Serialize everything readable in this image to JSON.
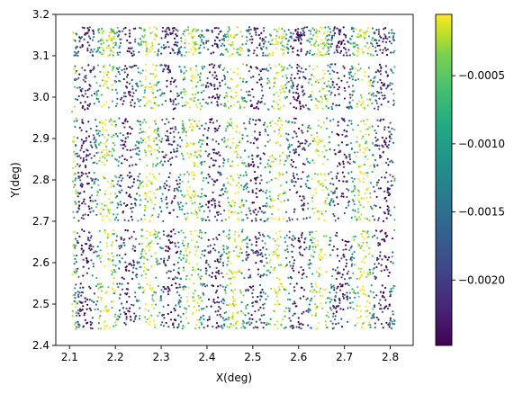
{
  "chart_data": {
    "type": "scatter",
    "xlabel": "X(deg)",
    "ylabel": "Y(deg)",
    "xlim": [
      2.07,
      2.85
    ],
    "ylim": [
      2.4,
      3.2
    ],
    "x_ticks": [
      "2.1",
      "2.2",
      "2.3",
      "2.4",
      "2.5",
      "2.6",
      "2.7",
      "2.8"
    ],
    "y_ticks": [
      "2.4",
      "2.5",
      "2.6",
      "2.7",
      "2.8",
      "2.9",
      "3.0",
      "3.1",
      "3.2"
    ],
    "colormap": "viridis",
    "color_range": [
      -0.00248,
      -5e-05
    ],
    "colorbar_ticks": [
      "−0.0005",
      "−0.0010",
      "−0.0015",
      "−0.0020"
    ],
    "grid": false,
    "point_count": 4800,
    "data_region": {
      "x": [
        2.11,
        2.81
      ],
      "y": [
        2.42,
        3.17
      ]
    },
    "horizontal_bands": [
      {
        "y": [
          3.1,
          3.17
        ]
      },
      {
        "y": [
          2.97,
          3.08
        ]
      },
      {
        "y": [
          2.83,
          2.95
        ]
      },
      {
        "y": [
          2.7,
          2.82
        ]
      },
      {
        "y": [
          2.56,
          2.68
        ]
      },
      {
        "y": [
          2.44,
          2.55
        ]
      }
    ],
    "stripe_period_x": 0.093,
    "stripe_phase_x": 2.135,
    "color_note": "vertical stripes alternate dark purple (~-0.0024) and yellow (~-0.0003) with period ~0.093 deg in X"
  }
}
